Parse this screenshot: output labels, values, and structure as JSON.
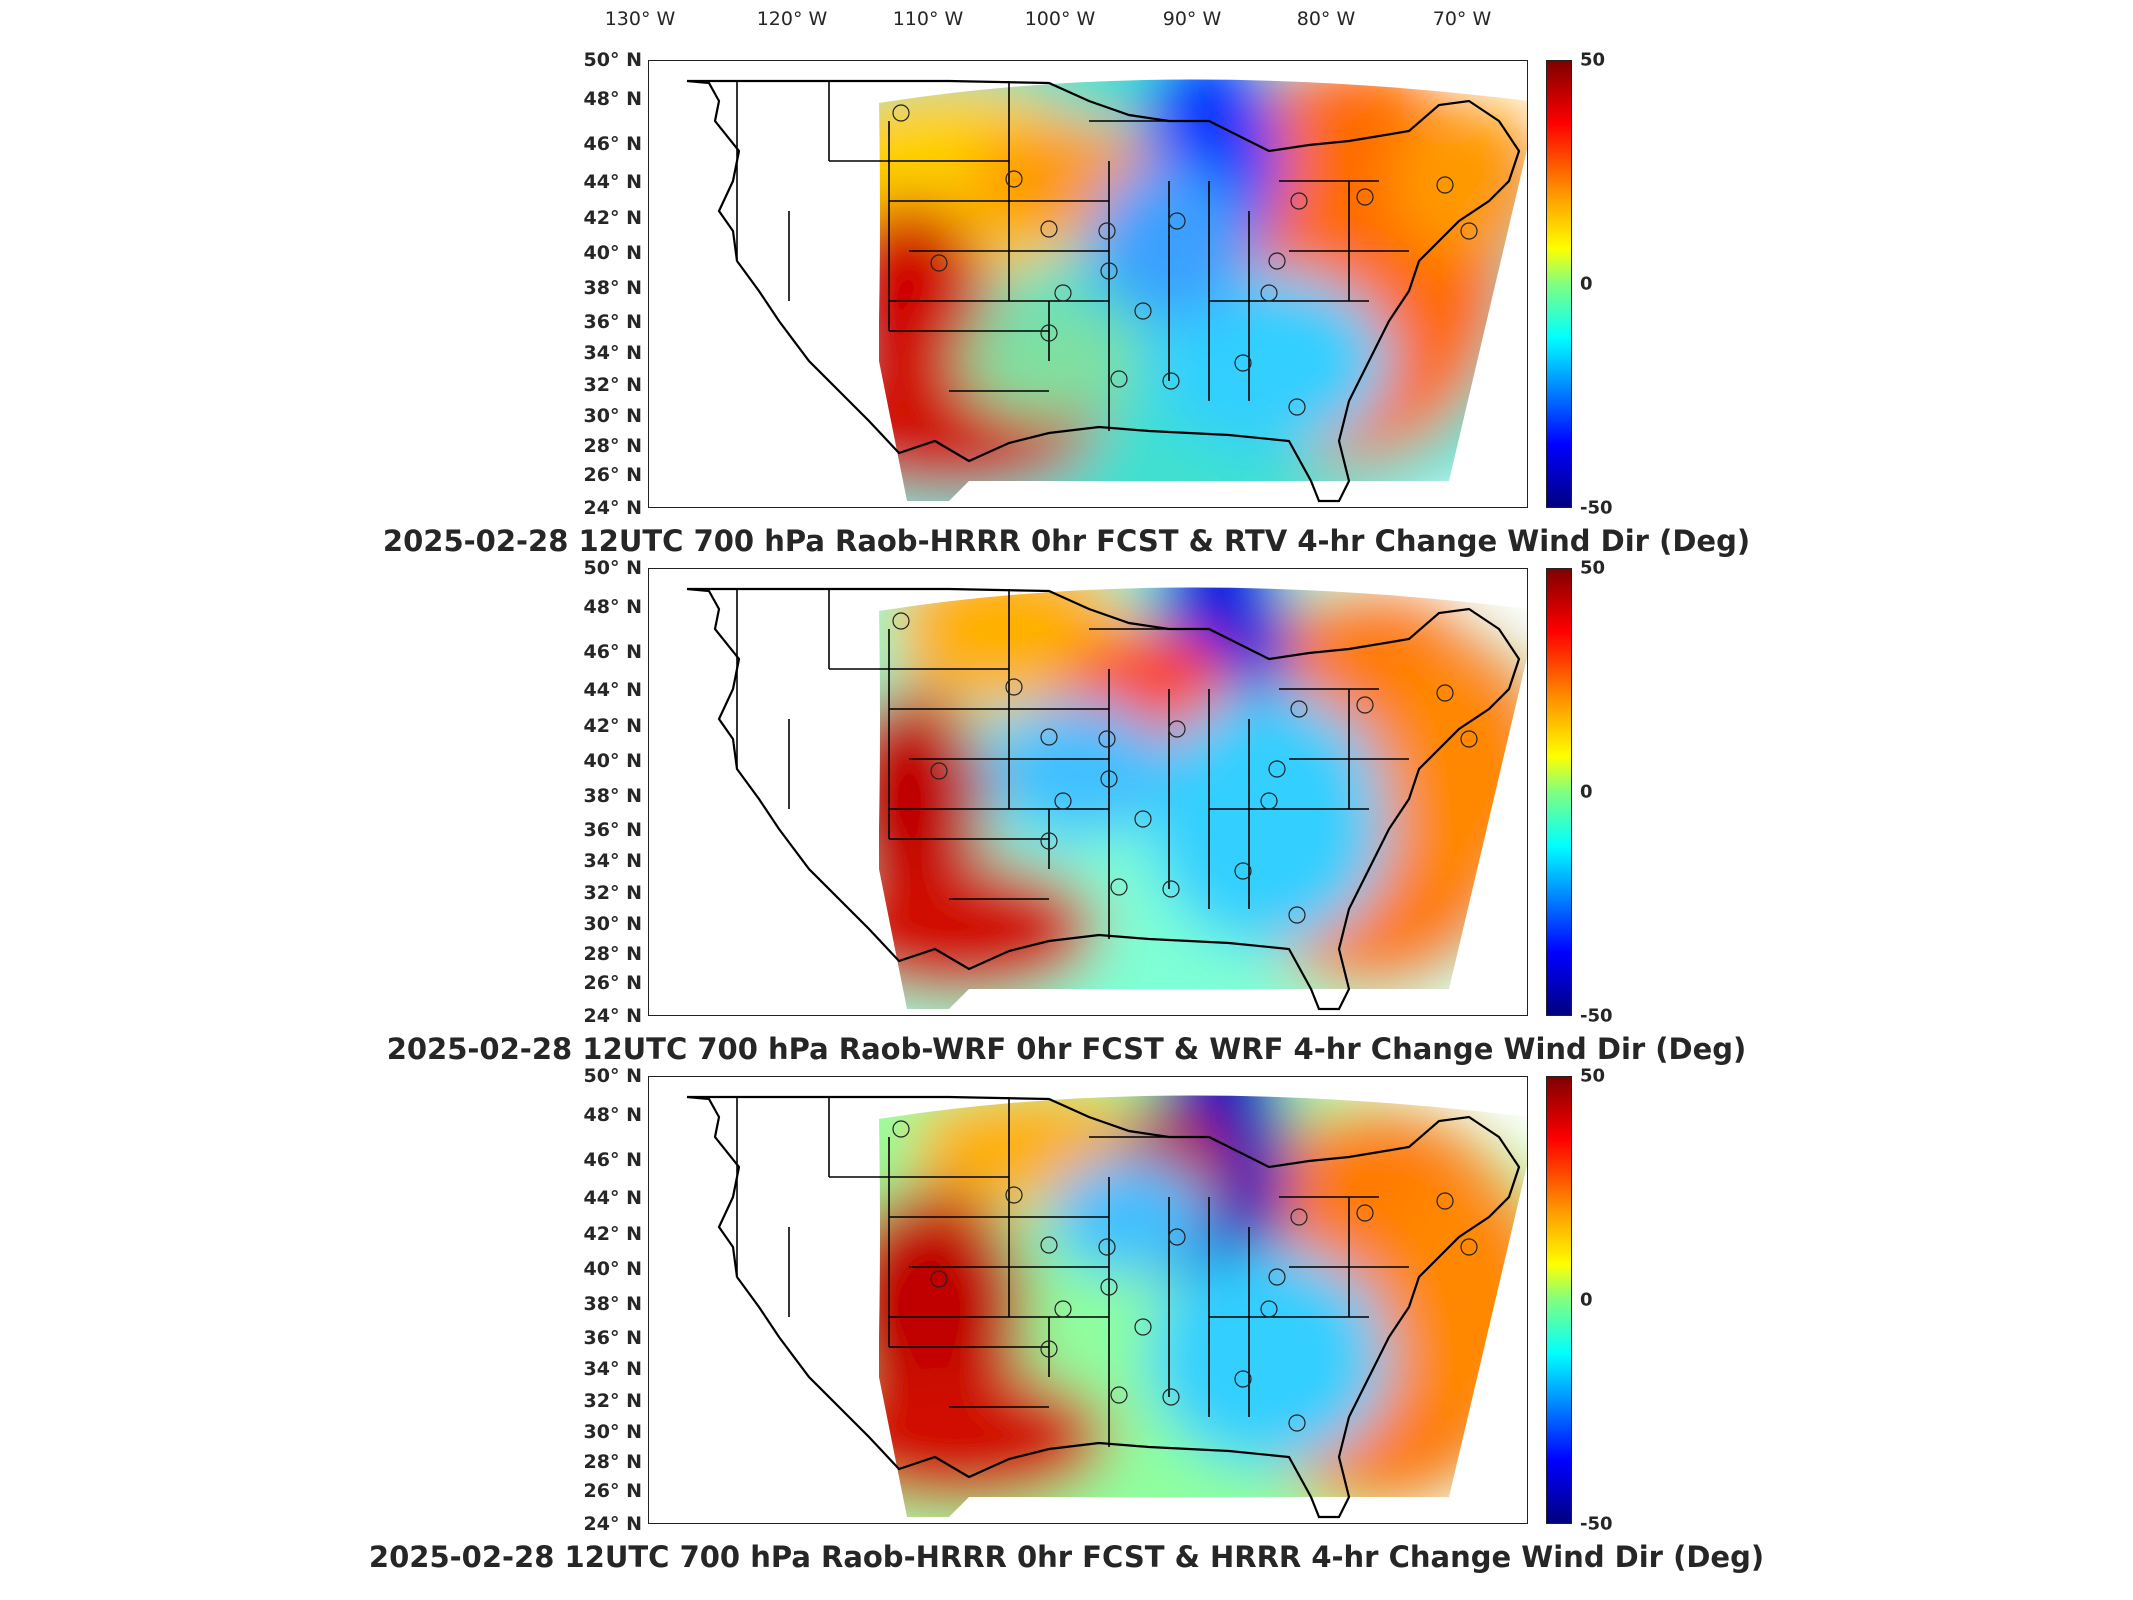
{
  "lon_labels": [
    "130° W",
    "120° W",
    "110° W",
    "100° W",
    "90° W",
    "80° W",
    "70° W"
  ],
  "lat_labels": [
    "50° N",
    "48° N",
    "46° N",
    "44° N",
    "42° N",
    "40° N",
    "38° N",
    "36° N",
    "34° N",
    "32° N",
    "30° N",
    "28° N",
    "26° N",
    "24° N"
  ],
  "colorbar": {
    "max": "50",
    "mid": "0",
    "min": "-50"
  },
  "panels": [
    {
      "title": "2025-02-28 12UTC 700 hPa Raob-HRRR 0hr FCST & RTV 4-hr Change Wind Dir (Deg)"
    },
    {
      "title": "2025-02-28 12UTC 700 hPa Raob-WRF 0hr FCST & WRF 4-hr Change Wind Dir (Deg)"
    },
    {
      "title": "2025-02-28 12UTC 700 hPa Raob-HRRR 0hr FCST & HRRR 4-hr Change Wind Dir (Deg)"
    }
  ],
  "colors": {
    "max": "#800000",
    "zero": "#80ff80",
    "min": "#000080"
  }
}
